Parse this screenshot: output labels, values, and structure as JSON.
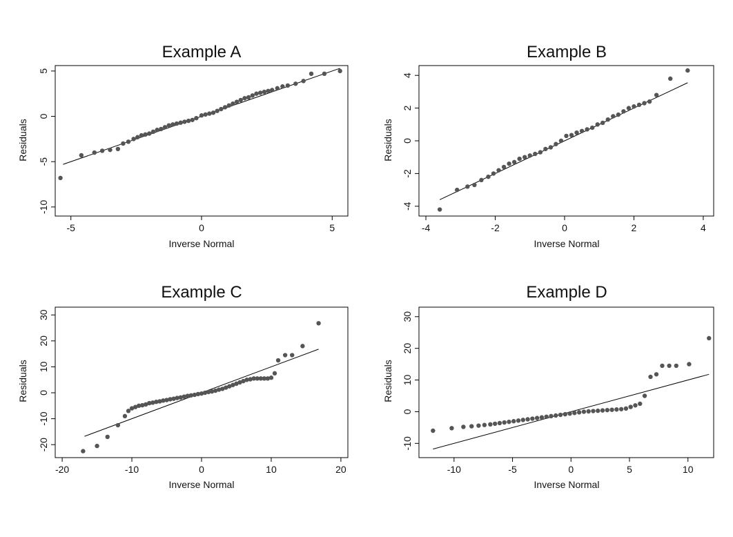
{
  "colors": {
    "points": "#555555",
    "line": "#000000",
    "frame": "#000000"
  },
  "chart_data": [
    {
      "type": "scatter",
      "title": "Example A",
      "xlabel": "Inverse Normal",
      "ylabel": "Residuals",
      "xlim": [
        -5.6,
        5.6
      ],
      "ylim": [
        -11,
        5.6
      ],
      "xticks": [
        -5,
        0,
        5
      ],
      "yticks": [
        -10,
        -5,
        0,
        5
      ],
      "fit_line": {
        "x": [
          -5.3,
          5.3
        ],
        "y": [
          -5.3,
          5.3
        ]
      },
      "points": {
        "x": [
          -5.4,
          -4.6,
          -4.1,
          -3.8,
          -3.5,
          -3.2,
          -3.0,
          -2.8,
          -2.6,
          -2.45,
          -2.3,
          -2.15,
          -2.0,
          -1.85,
          -1.7,
          -1.55,
          -1.4,
          -1.25,
          -1.1,
          -0.95,
          -0.8,
          -0.65,
          -0.5,
          -0.35,
          -0.2,
          0.0,
          0.15,
          0.3,
          0.45,
          0.6,
          0.75,
          0.9,
          1.05,
          1.2,
          1.35,
          1.5,
          1.65,
          1.8,
          1.95,
          2.1,
          2.25,
          2.4,
          2.55,
          2.7,
          2.9,
          3.1,
          3.3,
          3.6,
          3.9,
          4.2,
          4.7,
          5.3
        ],
        "y": [
          -6.8,
          -4.3,
          -4.0,
          -3.8,
          -3.7,
          -3.6,
          -3.0,
          -2.8,
          -2.5,
          -2.3,
          -2.1,
          -2.0,
          -1.9,
          -1.7,
          -1.5,
          -1.4,
          -1.2,
          -1.0,
          -0.9,
          -0.8,
          -0.7,
          -0.6,
          -0.5,
          -0.4,
          -0.2,
          0.1,
          0.2,
          0.3,
          0.4,
          0.6,
          0.8,
          1.0,
          1.2,
          1.4,
          1.6,
          1.8,
          2.0,
          2.1,
          2.3,
          2.5,
          2.6,
          2.7,
          2.8,
          2.9,
          3.1,
          3.3,
          3.4,
          3.6,
          3.9,
          4.7,
          4.7,
          5.0
        ]
      }
    },
    {
      "type": "scatter",
      "title": "Example B",
      "xlabel": "Inverse Normal",
      "ylabel": "Residuals",
      "xlim": [
        -4.2,
        4.3
      ],
      "ylim": [
        -4.6,
        4.6
      ],
      "xticks": [
        -4,
        -2,
        0,
        2,
        4
      ],
      "yticks": [
        -4,
        -2,
        0,
        2,
        4
      ],
      "fit_line": {
        "x": [
          -3.6,
          3.55
        ],
        "y": [
          -3.6,
          3.55
        ]
      },
      "points": {
        "x": [
          -3.6,
          -3.1,
          -2.8,
          -2.6,
          -2.4,
          -2.2,
          -2.05,
          -1.9,
          -1.75,
          -1.6,
          -1.45,
          -1.3,
          -1.15,
          -1.0,
          -0.85,
          -0.7,
          -0.55,
          -0.4,
          -0.25,
          -0.1,
          0.05,
          0.2,
          0.35,
          0.5,
          0.65,
          0.8,
          0.95,
          1.1,
          1.25,
          1.4,
          1.55,
          1.7,
          1.85,
          2.0,
          2.15,
          2.3,
          2.45,
          2.65,
          3.05,
          3.55
        ],
        "y": [
          -4.2,
          -3.0,
          -2.8,
          -2.7,
          -2.4,
          -2.2,
          -2.0,
          -1.8,
          -1.6,
          -1.4,
          -1.3,
          -1.1,
          -1.0,
          -0.9,
          -0.8,
          -0.7,
          -0.5,
          -0.4,
          -0.2,
          0.0,
          0.3,
          0.35,
          0.5,
          0.6,
          0.7,
          0.8,
          1.0,
          1.1,
          1.3,
          1.5,
          1.6,
          1.8,
          2.0,
          2.1,
          2.2,
          2.3,
          2.4,
          2.8,
          3.8,
          4.3
        ]
      }
    },
    {
      "type": "scatter",
      "title": "Example C",
      "xlabel": "Inverse Normal",
      "ylabel": "Residuals",
      "xlim": [
        -21,
        21
      ],
      "ylim": [
        -25,
        33
      ],
      "xticks": [
        -20,
        -10,
        0,
        10,
        20
      ],
      "yticks": [
        -20,
        -10,
        0,
        10,
        20,
        30
      ],
      "fit_line": {
        "x": [
          -16.8,
          16.8
        ],
        "y": [
          -16.8,
          16.8
        ]
      },
      "points": {
        "x": [
          -17.0,
          -15.0,
          -13.5,
          -12.0,
          -11.0,
          -10.5,
          -10.0,
          -9.5,
          -9.0,
          -8.5,
          -8.0,
          -7.5,
          -7.0,
          -6.5,
          -6.0,
          -5.5,
          -5.0,
          -4.5,
          -4.0,
          -3.5,
          -3.0,
          -2.5,
          -2.0,
          -1.5,
          -1.0,
          -0.5,
          0.0,
          0.5,
          1.0,
          1.5,
          2.0,
          2.5,
          3.0,
          3.5,
          4.0,
          4.5,
          5.0,
          5.5,
          6.0,
          6.5,
          7.0,
          7.5,
          8.0,
          8.5,
          9.0,
          9.5,
          10.0,
          10.5,
          11.0,
          12.0,
          13.0,
          14.5,
          16.8
        ],
        "y": [
          -22.5,
          -20.5,
          -17.0,
          -12.5,
          -9.0,
          -7.0,
          -6.0,
          -5.5,
          -5.0,
          -4.8,
          -4.5,
          -4.0,
          -3.8,
          -3.5,
          -3.3,
          -3.0,
          -2.8,
          -2.5,
          -2.3,
          -2.0,
          -1.8,
          -1.5,
          -1.2,
          -1.0,
          -0.8,
          -0.5,
          -0.3,
          0.0,
          0.3,
          0.5,
          0.8,
          1.2,
          1.5,
          2.0,
          2.5,
          3.0,
          3.5,
          4.0,
          4.5,
          5.0,
          5.2,
          5.5,
          5.5,
          5.5,
          5.5,
          5.5,
          5.8,
          7.5,
          12.5,
          14.5,
          14.5,
          18.0,
          26.8
        ]
      }
    },
    {
      "type": "scatter",
      "title": "Example D",
      "xlabel": "Inverse Normal",
      "ylabel": "Residuals",
      "xlim": [
        -13,
        12.2
      ],
      "ylim": [
        -14.5,
        33
      ],
      "xticks": [
        -10,
        -5,
        0,
        5,
        10
      ],
      "yticks": [
        -10,
        0,
        10,
        20,
        30
      ],
      "fit_line": {
        "x": [
          -11.8,
          11.8
        ],
        "y": [
          -11.8,
          11.8
        ]
      },
      "points": {
        "x": [
          -11.8,
          -10.2,
          -9.2,
          -8.5,
          -7.9,
          -7.4,
          -6.9,
          -6.5,
          -6.1,
          -5.7,
          -5.3,
          -4.9,
          -4.5,
          -4.1,
          -3.7,
          -3.3,
          -2.9,
          -2.5,
          -2.1,
          -1.7,
          -1.3,
          -0.9,
          -0.5,
          -0.1,
          0.3,
          0.7,
          1.1,
          1.5,
          1.9,
          2.3,
          2.7,
          3.1,
          3.5,
          3.9,
          4.3,
          4.7,
          5.1,
          5.5,
          5.9,
          6.3,
          6.8,
          7.3,
          7.8,
          8.4,
          9.0,
          10.1,
          11.8
        ],
        "y": [
          -6.0,
          -5.2,
          -4.8,
          -4.6,
          -4.4,
          -4.2,
          -4.0,
          -3.8,
          -3.6,
          -3.4,
          -3.2,
          -3.0,
          -2.8,
          -2.6,
          -2.4,
          -2.2,
          -2.0,
          -1.8,
          -1.6,
          -1.4,
          -1.2,
          -1.0,
          -0.8,
          -0.6,
          -0.4,
          -0.2,
          0.0,
          0.1,
          0.2,
          0.3,
          0.4,
          0.5,
          0.6,
          0.7,
          0.8,
          1.0,
          1.5,
          2.0,
          2.5,
          5.0,
          11.0,
          11.8,
          14.5,
          14.5,
          14.5,
          15.0,
          23.2
        ]
      }
    }
  ]
}
